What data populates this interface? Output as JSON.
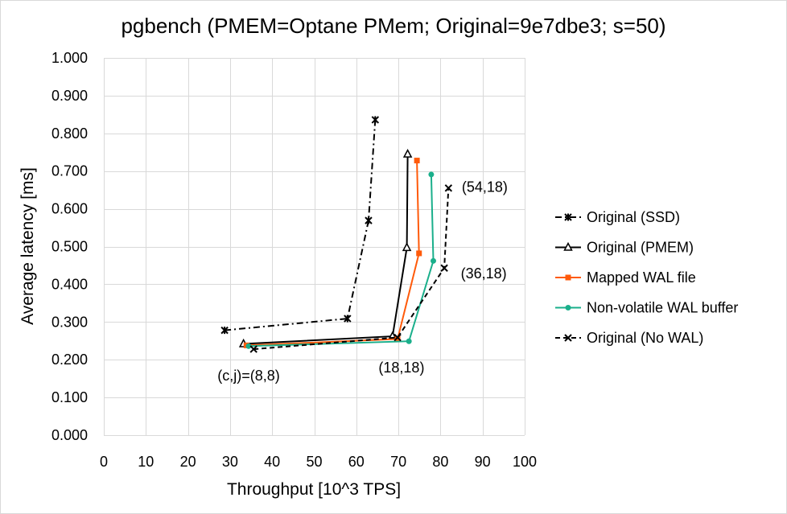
{
  "chart_data": {
    "type": "line",
    "title": "pgbench (PMEM=Optane PMem; Original=9e7dbe3; s=50)",
    "xlabel": "Throughput [10^3 TPS]",
    "ylabel": "Average latency [ms]",
    "xlim": [
      0,
      100
    ],
    "ylim": [
      0,
      1
    ],
    "x_ticks": [
      "0",
      "10",
      "20",
      "30",
      "40",
      "50",
      "60",
      "70",
      "80",
      "90",
      "100"
    ],
    "y_ticks": [
      "0.000",
      "0.100",
      "0.200",
      "0.300",
      "0.400",
      "0.500",
      "0.600",
      "0.700",
      "0.800",
      "0.900",
      "1.000"
    ],
    "grid": true,
    "legend_position": "right",
    "series": [
      {
        "name": "Original (SSD)",
        "color": "#000000",
        "line_style": "dash-dot",
        "marker": "star",
        "points": [
          [
            28.7,
            0.278
          ],
          [
            57.9,
            0.309
          ],
          [
            62.9,
            0.569
          ],
          [
            64.5,
            0.836
          ]
        ]
      },
      {
        "name": "Original (PMEM)",
        "color": "#000000",
        "line_style": "solid",
        "marker": "triangle-open",
        "points": [
          [
            33.2,
            0.242
          ],
          [
            68.6,
            0.262
          ],
          [
            72.0,
            0.497
          ],
          [
            72.2,
            0.745
          ]
        ]
      },
      {
        "name": "Mapped WAL file",
        "color": "#ff5a0a",
        "line_style": "solid",
        "marker": "square",
        "points": [
          [
            33.9,
            0.238
          ],
          [
            69.8,
            0.255
          ],
          [
            74.9,
            0.482
          ],
          [
            74.4,
            0.728
          ]
        ]
      },
      {
        "name": "Non-volatile WAL buffer",
        "color": "#1aaf8b",
        "line_style": "solid",
        "marker": "circle",
        "points": [
          [
            34.4,
            0.236
          ],
          [
            72.5,
            0.249
          ],
          [
            78.3,
            0.462
          ],
          [
            77.8,
            0.691
          ]
        ]
      },
      {
        "name": "Original (No WAL)",
        "color": "#000000",
        "line_style": "dashed",
        "marker": "x",
        "points": [
          [
            35.6,
            0.228
          ],
          [
            69.8,
            0.259
          ],
          [
            80.9,
            0.443
          ],
          [
            81.9,
            0.655
          ]
        ]
      }
    ],
    "annotations": [
      {
        "text": "(c,j)=(8,8)",
        "x": 35.0,
        "y": 0.228
      },
      {
        "text": "(18,18)",
        "x": 71.5,
        "y": 0.245
      },
      {
        "text": "(36,18)",
        "x": 81.0,
        "y": 0.443
      },
      {
        "text": "(54,18)",
        "x": 82.0,
        "y": 0.655
      }
    ]
  }
}
